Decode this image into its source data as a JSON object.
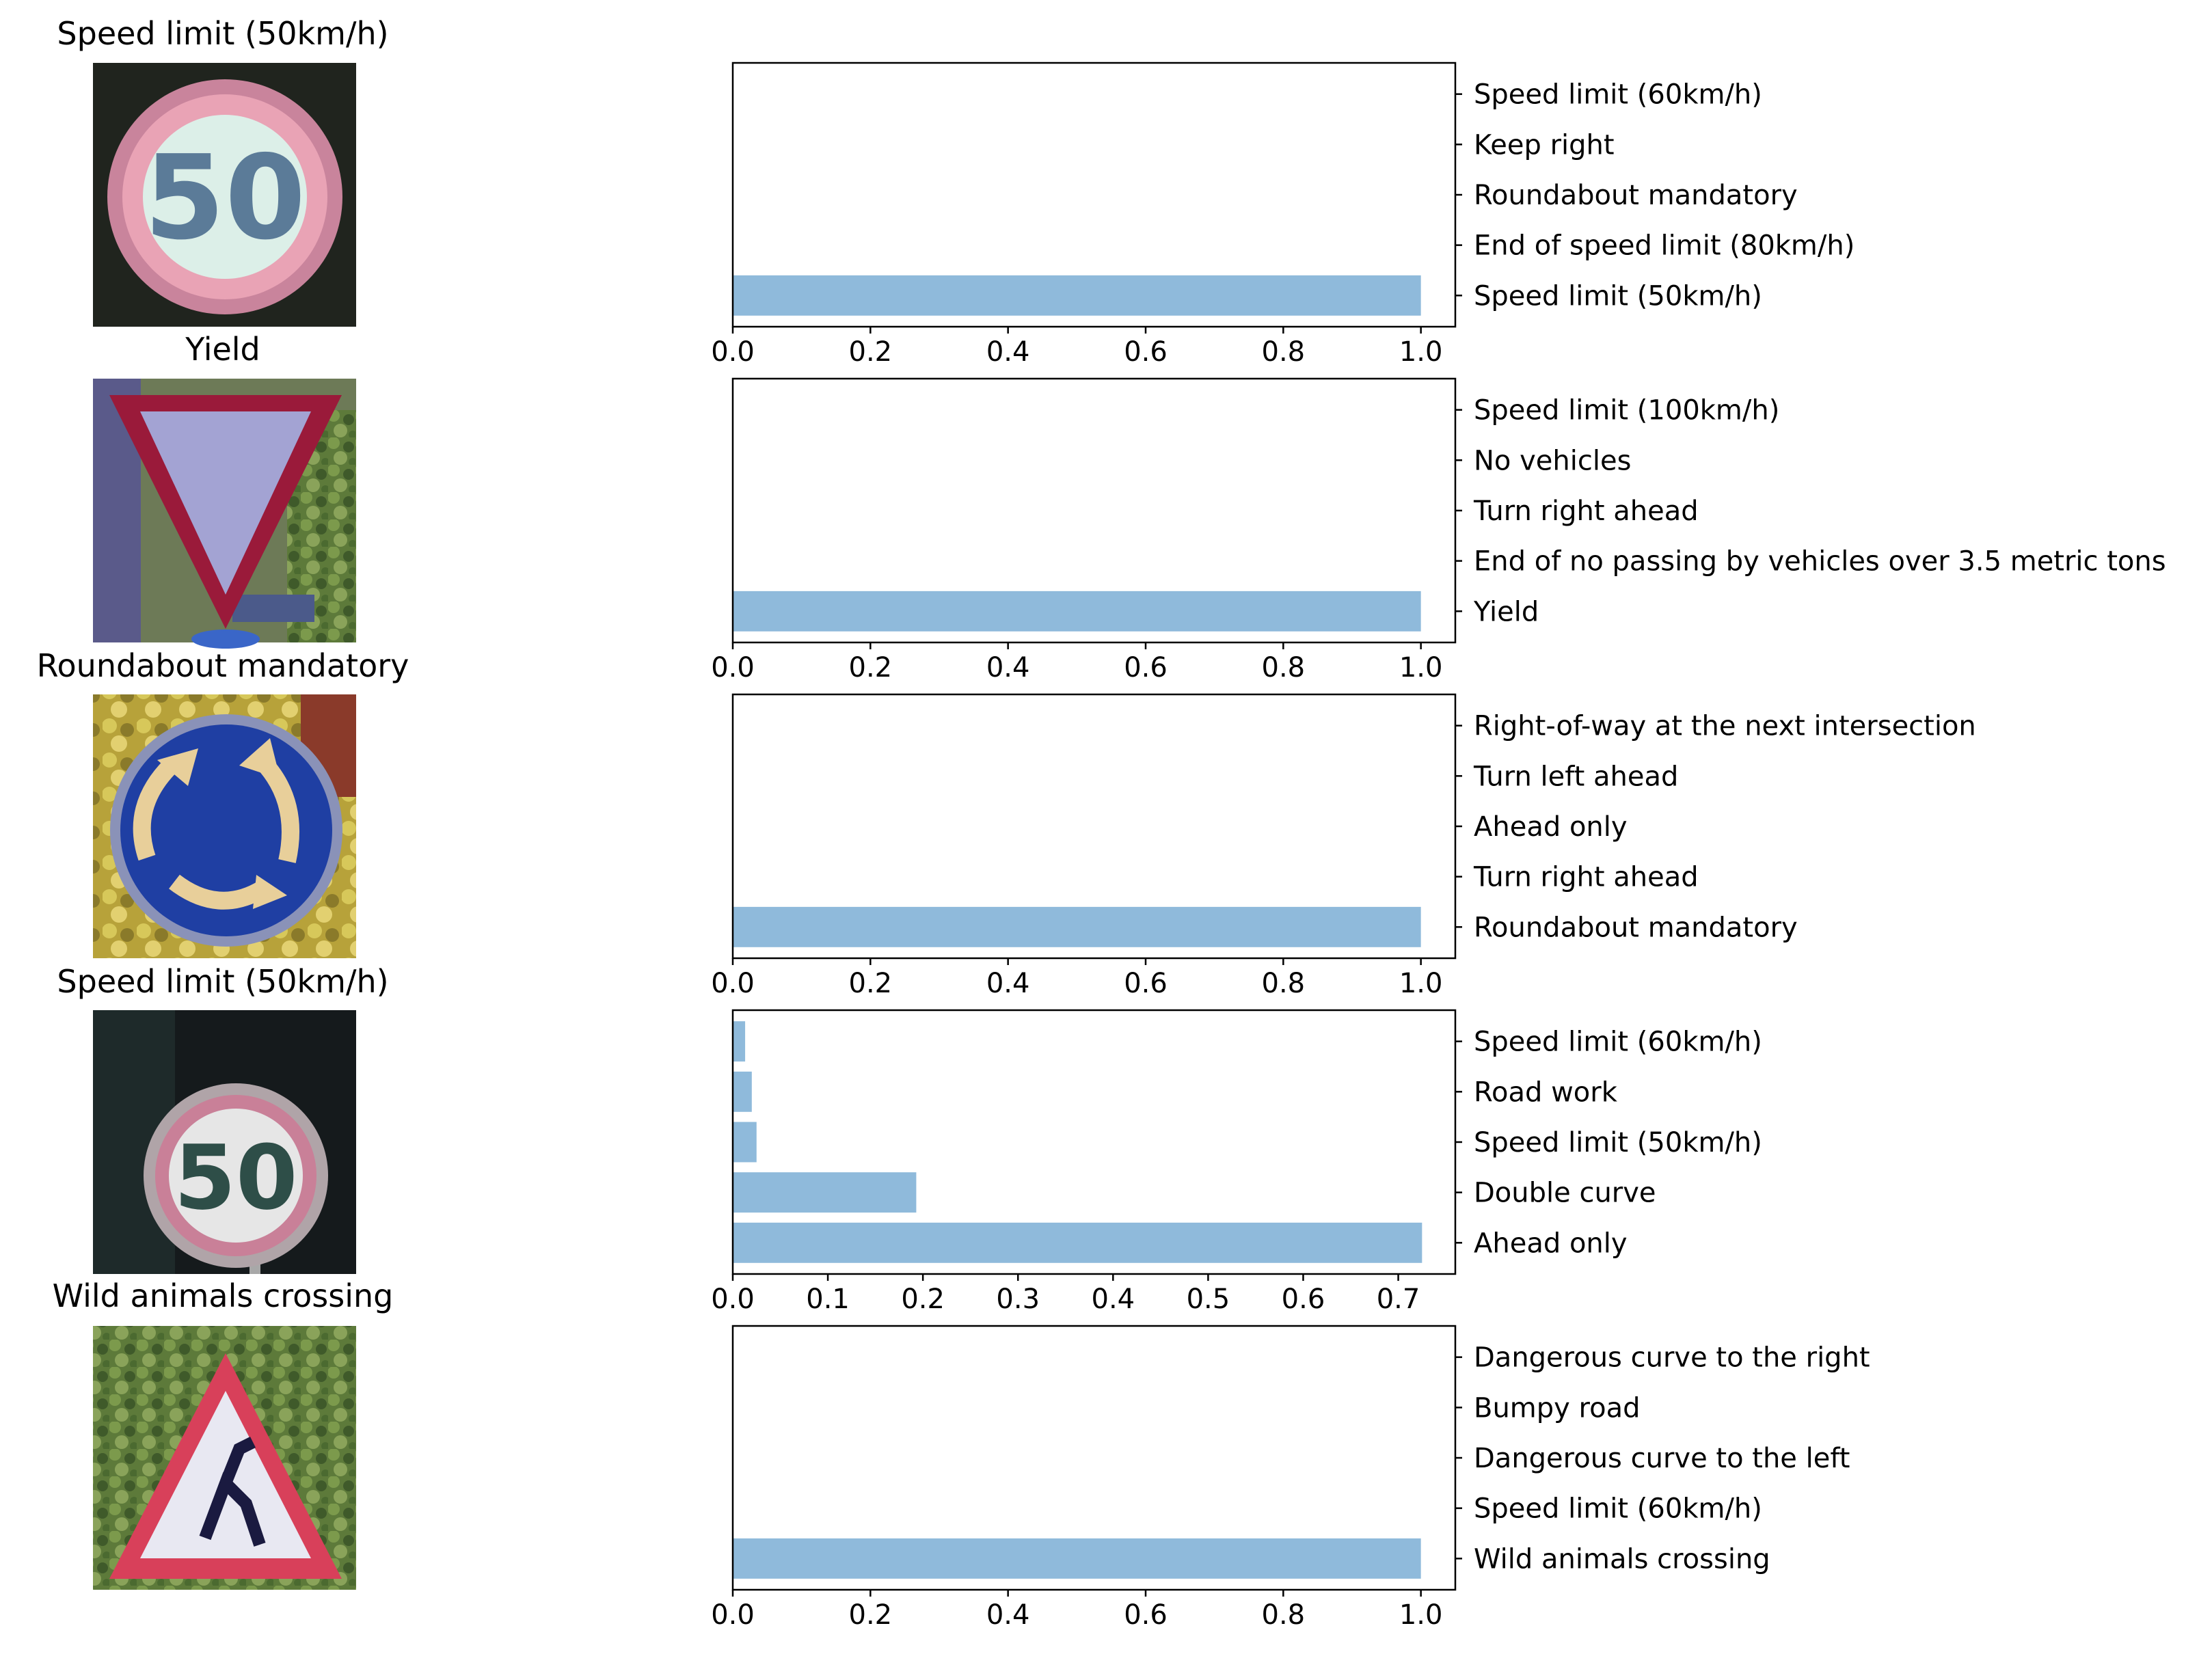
{
  "chart_data": [
    {
      "type": "bar",
      "orientation": "horizontal",
      "title": "Speed limit (50km/h)",
      "sign_icon": "speed-limit-50-sign",
      "categories": [
        "Speed limit (50km/h)",
        "End of speed limit (80km/h)",
        "Roundabout mandatory",
        "Keep right",
        "Speed limit (60km/h)"
      ],
      "values": [
        1.0,
        0.0,
        0.0,
        0.0,
        0.0
      ],
      "xlim": [
        0,
        1.05
      ],
      "xticks": [
        "0.0",
        "0.2",
        "0.4",
        "0.6",
        "0.8",
        "1.0"
      ],
      "tick_values": [
        0,
        0.2,
        0.4,
        0.6,
        0.8,
        1.0
      ],
      "bar_color": "#8fbadb"
    },
    {
      "type": "bar",
      "orientation": "horizontal",
      "title": "Yield",
      "sign_icon": "yield-sign",
      "categories": [
        "Yield",
        "End of no passing by vehicles over 3.5 metric tons",
        "Turn right ahead",
        "No vehicles",
        "Speed limit (100km/h)"
      ],
      "values": [
        1.0,
        0.0,
        0.0,
        0.0,
        0.0
      ],
      "xlim": [
        0,
        1.05
      ],
      "xticks": [
        "0.0",
        "0.2",
        "0.4",
        "0.6",
        "0.8",
        "1.0"
      ],
      "tick_values": [
        0,
        0.2,
        0.4,
        0.6,
        0.8,
        1.0
      ],
      "bar_color": "#8fbadb"
    },
    {
      "type": "bar",
      "orientation": "horizontal",
      "title": "Roundabout mandatory",
      "sign_icon": "roundabout-sign",
      "categories": [
        "Roundabout mandatory",
        "Turn right ahead",
        "Ahead only",
        "Turn left ahead",
        "Right-of-way at the next intersection"
      ],
      "values": [
        1.0,
        0.0,
        0.0,
        0.0,
        0.0
      ],
      "xlim": [
        0,
        1.05
      ],
      "xticks": [
        "0.0",
        "0.2",
        "0.4",
        "0.6",
        "0.8",
        "1.0"
      ],
      "tick_values": [
        0,
        0.2,
        0.4,
        0.6,
        0.8,
        1.0
      ],
      "bar_color": "#8fbadb"
    },
    {
      "type": "bar",
      "orientation": "horizontal",
      "title": "Speed limit (50km/h)",
      "sign_icon": "speed-limit-50-sign-dark",
      "categories": [
        "Ahead only",
        "Double curve",
        "Speed limit (50km/h)",
        "Road work",
        "Speed limit (60km/h)"
      ],
      "values": [
        0.725,
        0.193,
        0.025,
        0.02,
        0.013
      ],
      "xlim": [
        0,
        0.76
      ],
      "xticks": [
        "0.0",
        "0.1",
        "0.2",
        "0.3",
        "0.4",
        "0.5",
        "0.6",
        "0.7"
      ],
      "tick_values": [
        0,
        0.1,
        0.2,
        0.3,
        0.4,
        0.5,
        0.6,
        0.7
      ],
      "bar_color": "#8fbadb"
    },
    {
      "type": "bar",
      "orientation": "horizontal",
      "title": "Wild animals crossing",
      "sign_icon": "wild-animals-sign",
      "categories": [
        "Wild animals crossing",
        "Speed limit (60km/h)",
        "Dangerous curve to the left",
        "Bumpy road",
        "Dangerous curve to the right"
      ],
      "values": [
        1.0,
        0.0,
        0.0,
        0.0,
        0.0
      ],
      "xlim": [
        0,
        1.05
      ],
      "xticks": [
        "0.0",
        "0.2",
        "0.4",
        "0.6",
        "0.8",
        "1.0"
      ],
      "tick_values": [
        0,
        0.2,
        0.4,
        0.6,
        0.8,
        1.0
      ],
      "bar_color": "#8fbadb"
    }
  ]
}
